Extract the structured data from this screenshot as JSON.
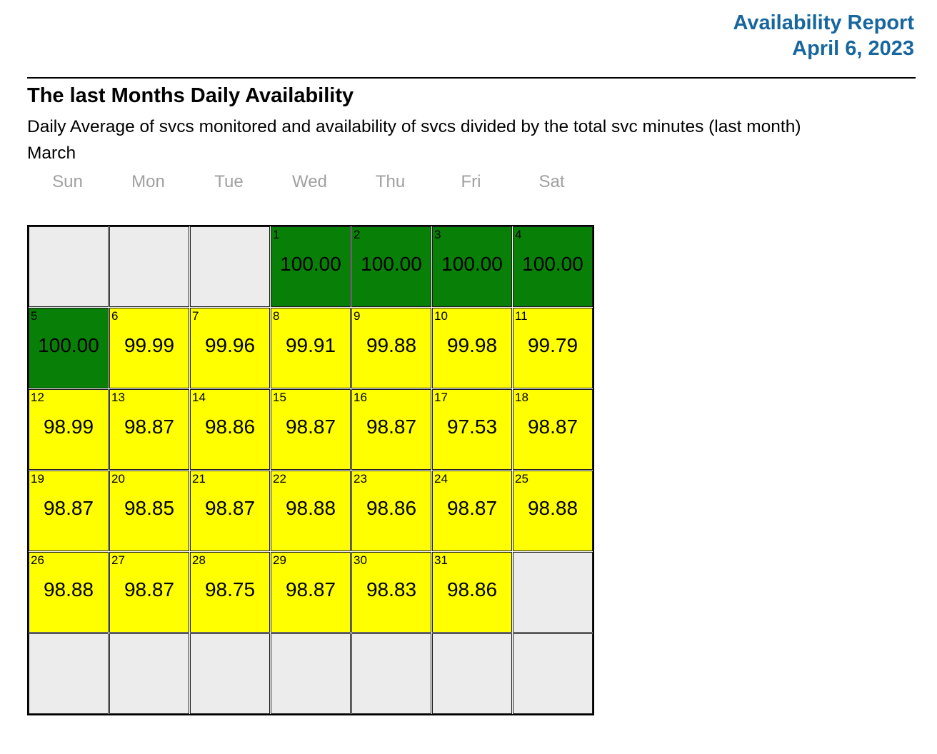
{
  "header": {
    "title": "Availability Report",
    "date": "April 6, 2023"
  },
  "section": {
    "title": "The last Months Daily Availability",
    "subtitle": "Daily Average of svcs monitored and availability of svcs divided by the total svc minutes (last month)",
    "month": "March"
  },
  "calendar": {
    "weekdays": [
      "Sun",
      "Mon",
      "Tue",
      "Wed",
      "Thu",
      "Fri",
      "Sat"
    ],
    "rows": [
      [
        {
          "color": "empty"
        },
        {
          "color": "empty"
        },
        {
          "color": "empty"
        },
        {
          "day": "1",
          "value": "100.00",
          "color": "green"
        },
        {
          "day": "2",
          "value": "100.00",
          "color": "green"
        },
        {
          "day": "3",
          "value": "100.00",
          "color": "green"
        },
        {
          "day": "4",
          "value": "100.00",
          "color": "green"
        }
      ],
      [
        {
          "day": "5",
          "value": "100.00",
          "color": "green"
        },
        {
          "day": "6",
          "value": "99.99",
          "color": "yellow"
        },
        {
          "day": "7",
          "value": "99.96",
          "color": "yellow"
        },
        {
          "day": "8",
          "value": "99.91",
          "color": "yellow"
        },
        {
          "day": "9",
          "value": "99.88",
          "color": "yellow"
        },
        {
          "day": "10",
          "value": "99.98",
          "color": "yellow"
        },
        {
          "day": "11",
          "value": "99.79",
          "color": "yellow"
        }
      ],
      [
        {
          "day": "12",
          "value": "98.99",
          "color": "yellow"
        },
        {
          "day": "13",
          "value": "98.87",
          "color": "yellow"
        },
        {
          "day": "14",
          "value": "98.86",
          "color": "yellow"
        },
        {
          "day": "15",
          "value": "98.87",
          "color": "yellow"
        },
        {
          "day": "16",
          "value": "98.87",
          "color": "yellow"
        },
        {
          "day": "17",
          "value": "97.53",
          "color": "yellow"
        },
        {
          "day": "18",
          "value": "98.87",
          "color": "yellow"
        }
      ],
      [
        {
          "day": "19",
          "value": "98.87",
          "color": "yellow"
        },
        {
          "day": "20",
          "value": "98.85",
          "color": "yellow"
        },
        {
          "day": "21",
          "value": "98.87",
          "color": "yellow"
        },
        {
          "day": "22",
          "value": "98.88",
          "color": "yellow"
        },
        {
          "day": "23",
          "value": "98.86",
          "color": "yellow"
        },
        {
          "day": "24",
          "value": "98.87",
          "color": "yellow"
        },
        {
          "day": "25",
          "value": "98.88",
          "color": "yellow"
        }
      ],
      [
        {
          "day": "26",
          "value": "98.88",
          "color": "yellow"
        },
        {
          "day": "27",
          "value": "98.87",
          "color": "yellow"
        },
        {
          "day": "28",
          "value": "98.75",
          "color": "yellow"
        },
        {
          "day": "29",
          "value": "98.87",
          "color": "yellow"
        },
        {
          "day": "30",
          "value": "98.83",
          "color": "yellow"
        },
        {
          "day": "31",
          "value": "98.86",
          "color": "yellow"
        },
        {
          "color": "empty"
        }
      ],
      [
        {
          "color": "empty"
        },
        {
          "color": "empty"
        },
        {
          "color": "empty"
        },
        {
          "color": "empty"
        },
        {
          "color": "empty"
        },
        {
          "color": "empty"
        },
        {
          "color": "empty"
        }
      ]
    ]
  },
  "colors": {
    "green": "#088008",
    "yellow": "#ffff00",
    "empty": "#ececec",
    "accent_blue": "#17679e",
    "weekday_gray": "#a0a0a0"
  }
}
